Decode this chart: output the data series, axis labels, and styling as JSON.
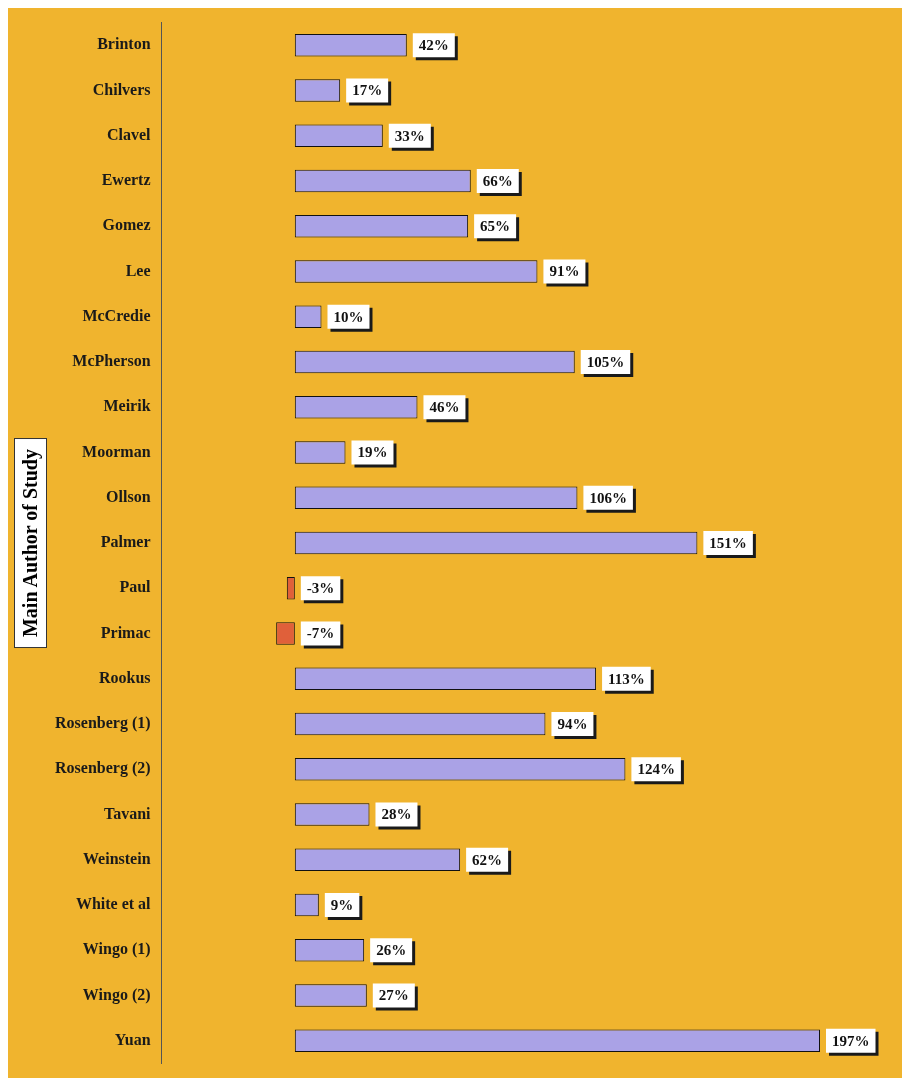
{
  "chart_data": {
    "type": "bar",
    "orientation": "horizontal",
    "ylabel": "Main Author of Study",
    "categories": [
      "Brinton",
      "Chilvers",
      "Clavel",
      "Ewertz",
      "Gomez",
      "Lee",
      "McCredie",
      "McPherson",
      "Meirik",
      "Moorman",
      "Ollson",
      "Palmer",
      "Paul",
      "Primac",
      "Rookus",
      "Rosenberg (1)",
      "Rosenberg (2)",
      "Tavani",
      "Weinstein",
      "White et al",
      "Wingo (1)",
      "Wingo (2)",
      "Yuan"
    ],
    "values": [
      42,
      17,
      33,
      66,
      65,
      91,
      10,
      105,
      46,
      19,
      106,
      151,
      -3,
      -7,
      113,
      94,
      124,
      28,
      62,
      9,
      26,
      27,
      197
    ],
    "value_labels": [
      "42%",
      "17%",
      "33%",
      "66%",
      "65%",
      "91%",
      "10%",
      "105%",
      "46%",
      "19%",
      "106%",
      "151%",
      "-3%",
      "-7%",
      "113%",
      "94%",
      "124%",
      "28%",
      "62%",
      "9%",
      "26%",
      "27%",
      "197%"
    ],
    "colors": [
      "#aaa2e6",
      "#aaa2e6",
      "#aaa2e6",
      "#aaa2e6",
      "#aaa2e6",
      "#aaa2e6",
      "#aaa2e6",
      "#aaa2e6",
      "#aaa2e6",
      "#aaa2e6",
      "#aaa2e6",
      "#aaa2e6",
      "#e0603a",
      "#e0603a",
      "#aaa2e6",
      "#aaa2e6",
      "#aaa2e6",
      "#aaa2e6",
      "#aaa2e6",
      "#aaa2e6",
      "#aaa2e6",
      "#aaa2e6",
      "#aaa2e6"
    ],
    "tick_labels": "y",
    "legend": false
  }
}
